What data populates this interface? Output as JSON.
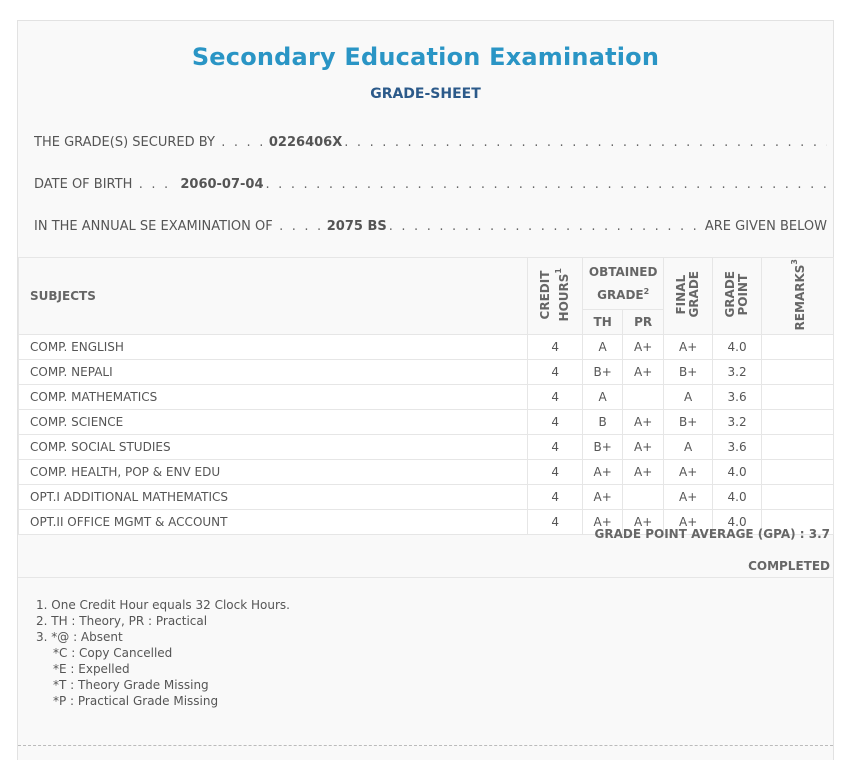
{
  "header": {
    "title": "Secondary Education Examination",
    "subtitle": "GRADE-SHEET"
  },
  "info": {
    "secured_by_label": "THE GRADE(S) SECURED BY",
    "symbol_no": "0226406X",
    "dob_label": "DATE OF BIRTH",
    "dob": "2060-07-04",
    "exam_label": "IN THE ANNUAL SE EXAMINATION OF",
    "exam_year": "2075 BS",
    "given_below": "ARE GIVEN BELOW"
  },
  "table": {
    "headers": {
      "subjects": "SUBJECTS",
      "credit_1": "CREDIT",
      "credit_2": "HOURS",
      "credit_sup": "1",
      "obtained_1": "OBTAINED",
      "obtained_2": "GRADE",
      "obtained_sup": "2",
      "th": "TH",
      "pr": "PR",
      "final_1": "FINAL",
      "final_2": "GRADE",
      "gp_1": "GRADE",
      "gp_2": "POINT",
      "remarks": "REMARKS",
      "remarks_sup": "3"
    },
    "rows": [
      {
        "subject": "COMP. ENGLISH",
        "credit": "4",
        "th": "A",
        "pr": "A+",
        "final": "A+",
        "gp": "4.0",
        "remarks": ""
      },
      {
        "subject": "COMP. NEPALI",
        "credit": "4",
        "th": "B+",
        "pr": "A+",
        "final": "B+",
        "gp": "3.2",
        "remarks": ""
      },
      {
        "subject": "COMP. MATHEMATICS",
        "credit": "4",
        "th": "A",
        "pr": "",
        "final": "A",
        "gp": "3.6",
        "remarks": ""
      },
      {
        "subject": "COMP. SCIENCE",
        "credit": "4",
        "th": "B",
        "pr": "A+",
        "final": "B+",
        "gp": "3.2",
        "remarks": ""
      },
      {
        "subject": "COMP. SOCIAL STUDIES",
        "credit": "4",
        "th": "B+",
        "pr": "A+",
        "final": "A",
        "gp": "3.6",
        "remarks": ""
      },
      {
        "subject": "COMP. HEALTH, POP & ENV EDU",
        "credit": "4",
        "th": "A+",
        "pr": "A+",
        "final": "A+",
        "gp": "4.0",
        "remarks": ""
      },
      {
        "subject": "OPT.I ADDITIONAL MATHEMATICS",
        "credit": "4",
        "th": "A+",
        "pr": "",
        "final": "A+",
        "gp": "4.0",
        "remarks": ""
      },
      {
        "subject": "OPT.II OFFICE MGMT & ACCOUNT",
        "credit": "4",
        "th": "A+",
        "pr": "A+",
        "final": "A+",
        "gp": "4.0",
        "remarks": ""
      }
    ]
  },
  "summary": {
    "gpa": "GRADE POINT AVERAGE (GPA) : 3.7",
    "status": "COMPLETED"
  },
  "notes": [
    "1. One Credit Hour equals 32 Clock Hours.",
    "2. TH : Theory, PR : Practical",
    "3. *@ : Absent",
    "*C : Copy Cancelled",
    "*E : Expelled",
    "*T : Theory Grade Missing",
    "*P : Practical Grade Missing"
  ]
}
